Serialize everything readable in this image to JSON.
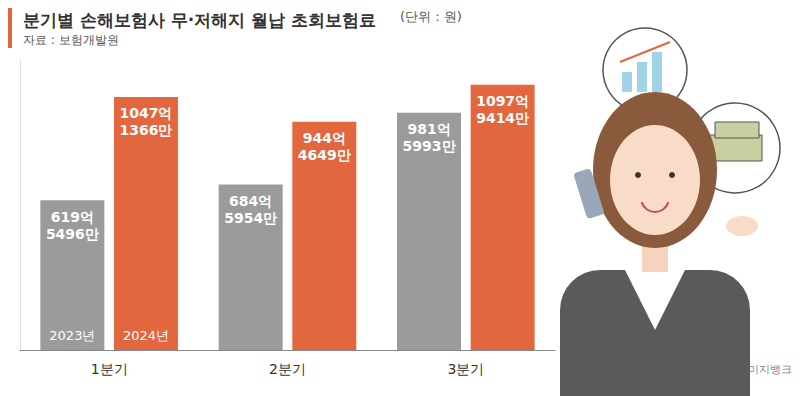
{
  "chart_data": {
    "type": "bar",
    "title": "분기별 손해보험사 무·저해지 월납 초회보험료",
    "subtitle": "자료 : 보험개발원",
    "annotations": [
      "(단위 : 원)",
      "게티이미지뱅크"
    ],
    "categories": [
      "1분기",
      "2분기",
      "3분기"
    ],
    "series": [
      {
        "name": "2023년",
        "color": "#9b9b9b",
        "values": [
          61954960000,
          68459540000,
          98159930000
        ],
        "value_labels": [
          "619억\n5496만",
          "684억\n5954만",
          "981억\n5993만"
        ]
      },
      {
        "name": "2024년",
        "color": "#e2673f",
        "values": [
          104713660000,
          94446490000,
          109794140000
        ],
        "value_labels": [
          "1047억\n1366만",
          "944억\n4649만",
          "1097억\n9414만"
        ]
      }
    ],
    "ylim": [
      0,
      120000000000
    ],
    "tick_labels": "x",
    "data_labels": true,
    "grid": false
  }
}
